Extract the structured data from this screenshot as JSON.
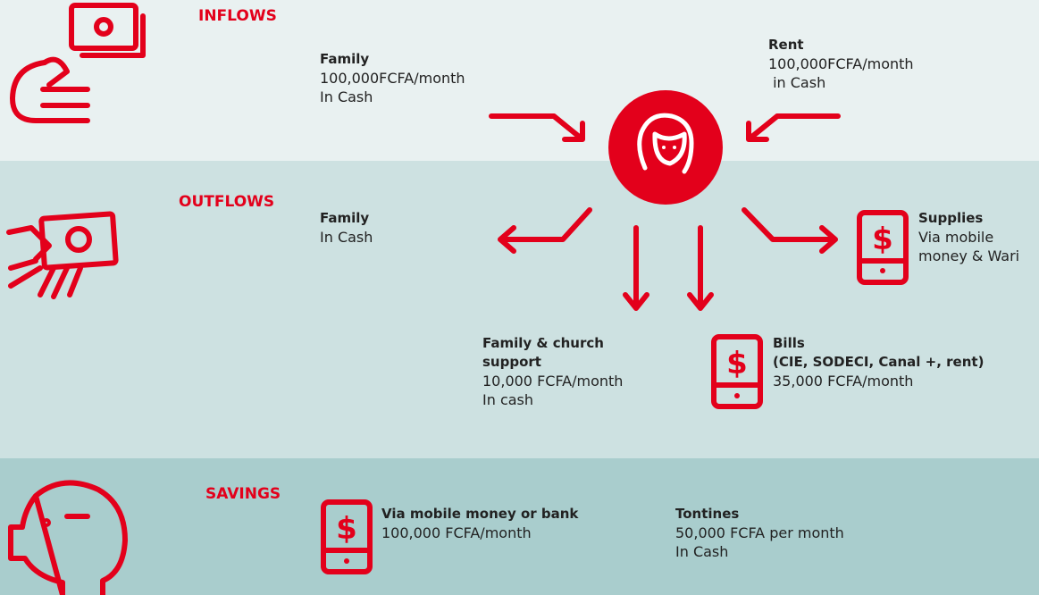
{
  "inflows": {
    "label": "INFLOWS",
    "items": [
      {
        "title": [
          "Family"
        ],
        "lines": [
          "100,000FCFA/month",
          "In Cash"
        ]
      },
      {
        "title": [
          "Rent"
        ],
        "lines": [
          "100,000FCFA/month",
          " in Cash"
        ]
      }
    ]
  },
  "outflows": {
    "label": "OUTFLOWS",
    "items": [
      {
        "title": [
          "Family"
        ],
        "lines": [
          "In Cash"
        ]
      },
      {
        "title": [
          "Supplies"
        ],
        "lines": [
          "Via mobile",
          "money & Wari"
        ]
      },
      {
        "title": [
          "Family & church",
          "support"
        ],
        "lines": [
          "10,000 FCFA/month",
          "In cash"
        ]
      },
      {
        "title": [
          "Bills",
          "(CIE, SODECI, Canal +, rent)"
        ],
        "lines": [
          "35,000 FCFA/month"
        ]
      }
    ]
  },
  "savings": {
    "label": "SAVINGS",
    "items": [
      {
        "title": [
          "Via mobile money or bank"
        ],
        "lines": [
          "100,000 FCFA/month"
        ]
      },
      {
        "title": [
          "Tontines"
        ],
        "lines": [
          "50,000 FCFA per month",
          "In Cash"
        ]
      }
    ]
  }
}
